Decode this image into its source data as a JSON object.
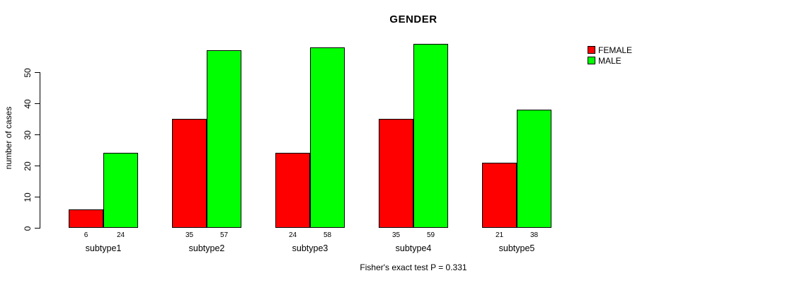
{
  "figure": {
    "background": "#ffffff"
  },
  "chart_data": {
    "type": "bar",
    "title": "GENDER",
    "categories": [
      "subtype1",
      "subtype2",
      "subtype3",
      "subtype4",
      "subtype5"
    ],
    "series": [
      {
        "name": "FEMALE",
        "color": "#ff0000",
        "values": [
          6,
          35,
          24,
          35,
          21
        ]
      },
      {
        "name": "MALE",
        "color": "#00ff00",
        "values": [
          24,
          57,
          58,
          59,
          38
        ]
      }
    ],
    "xlabel": "",
    "ylabel": "number of cases",
    "yticks": [
      0,
      10,
      20,
      30,
      40,
      50
    ],
    "ylim": [
      0,
      59
    ],
    "bar_value_labels_shown": true,
    "grid": false,
    "legend_position": "top-right",
    "annotation": "Fisher's exact test P = 0.331"
  }
}
